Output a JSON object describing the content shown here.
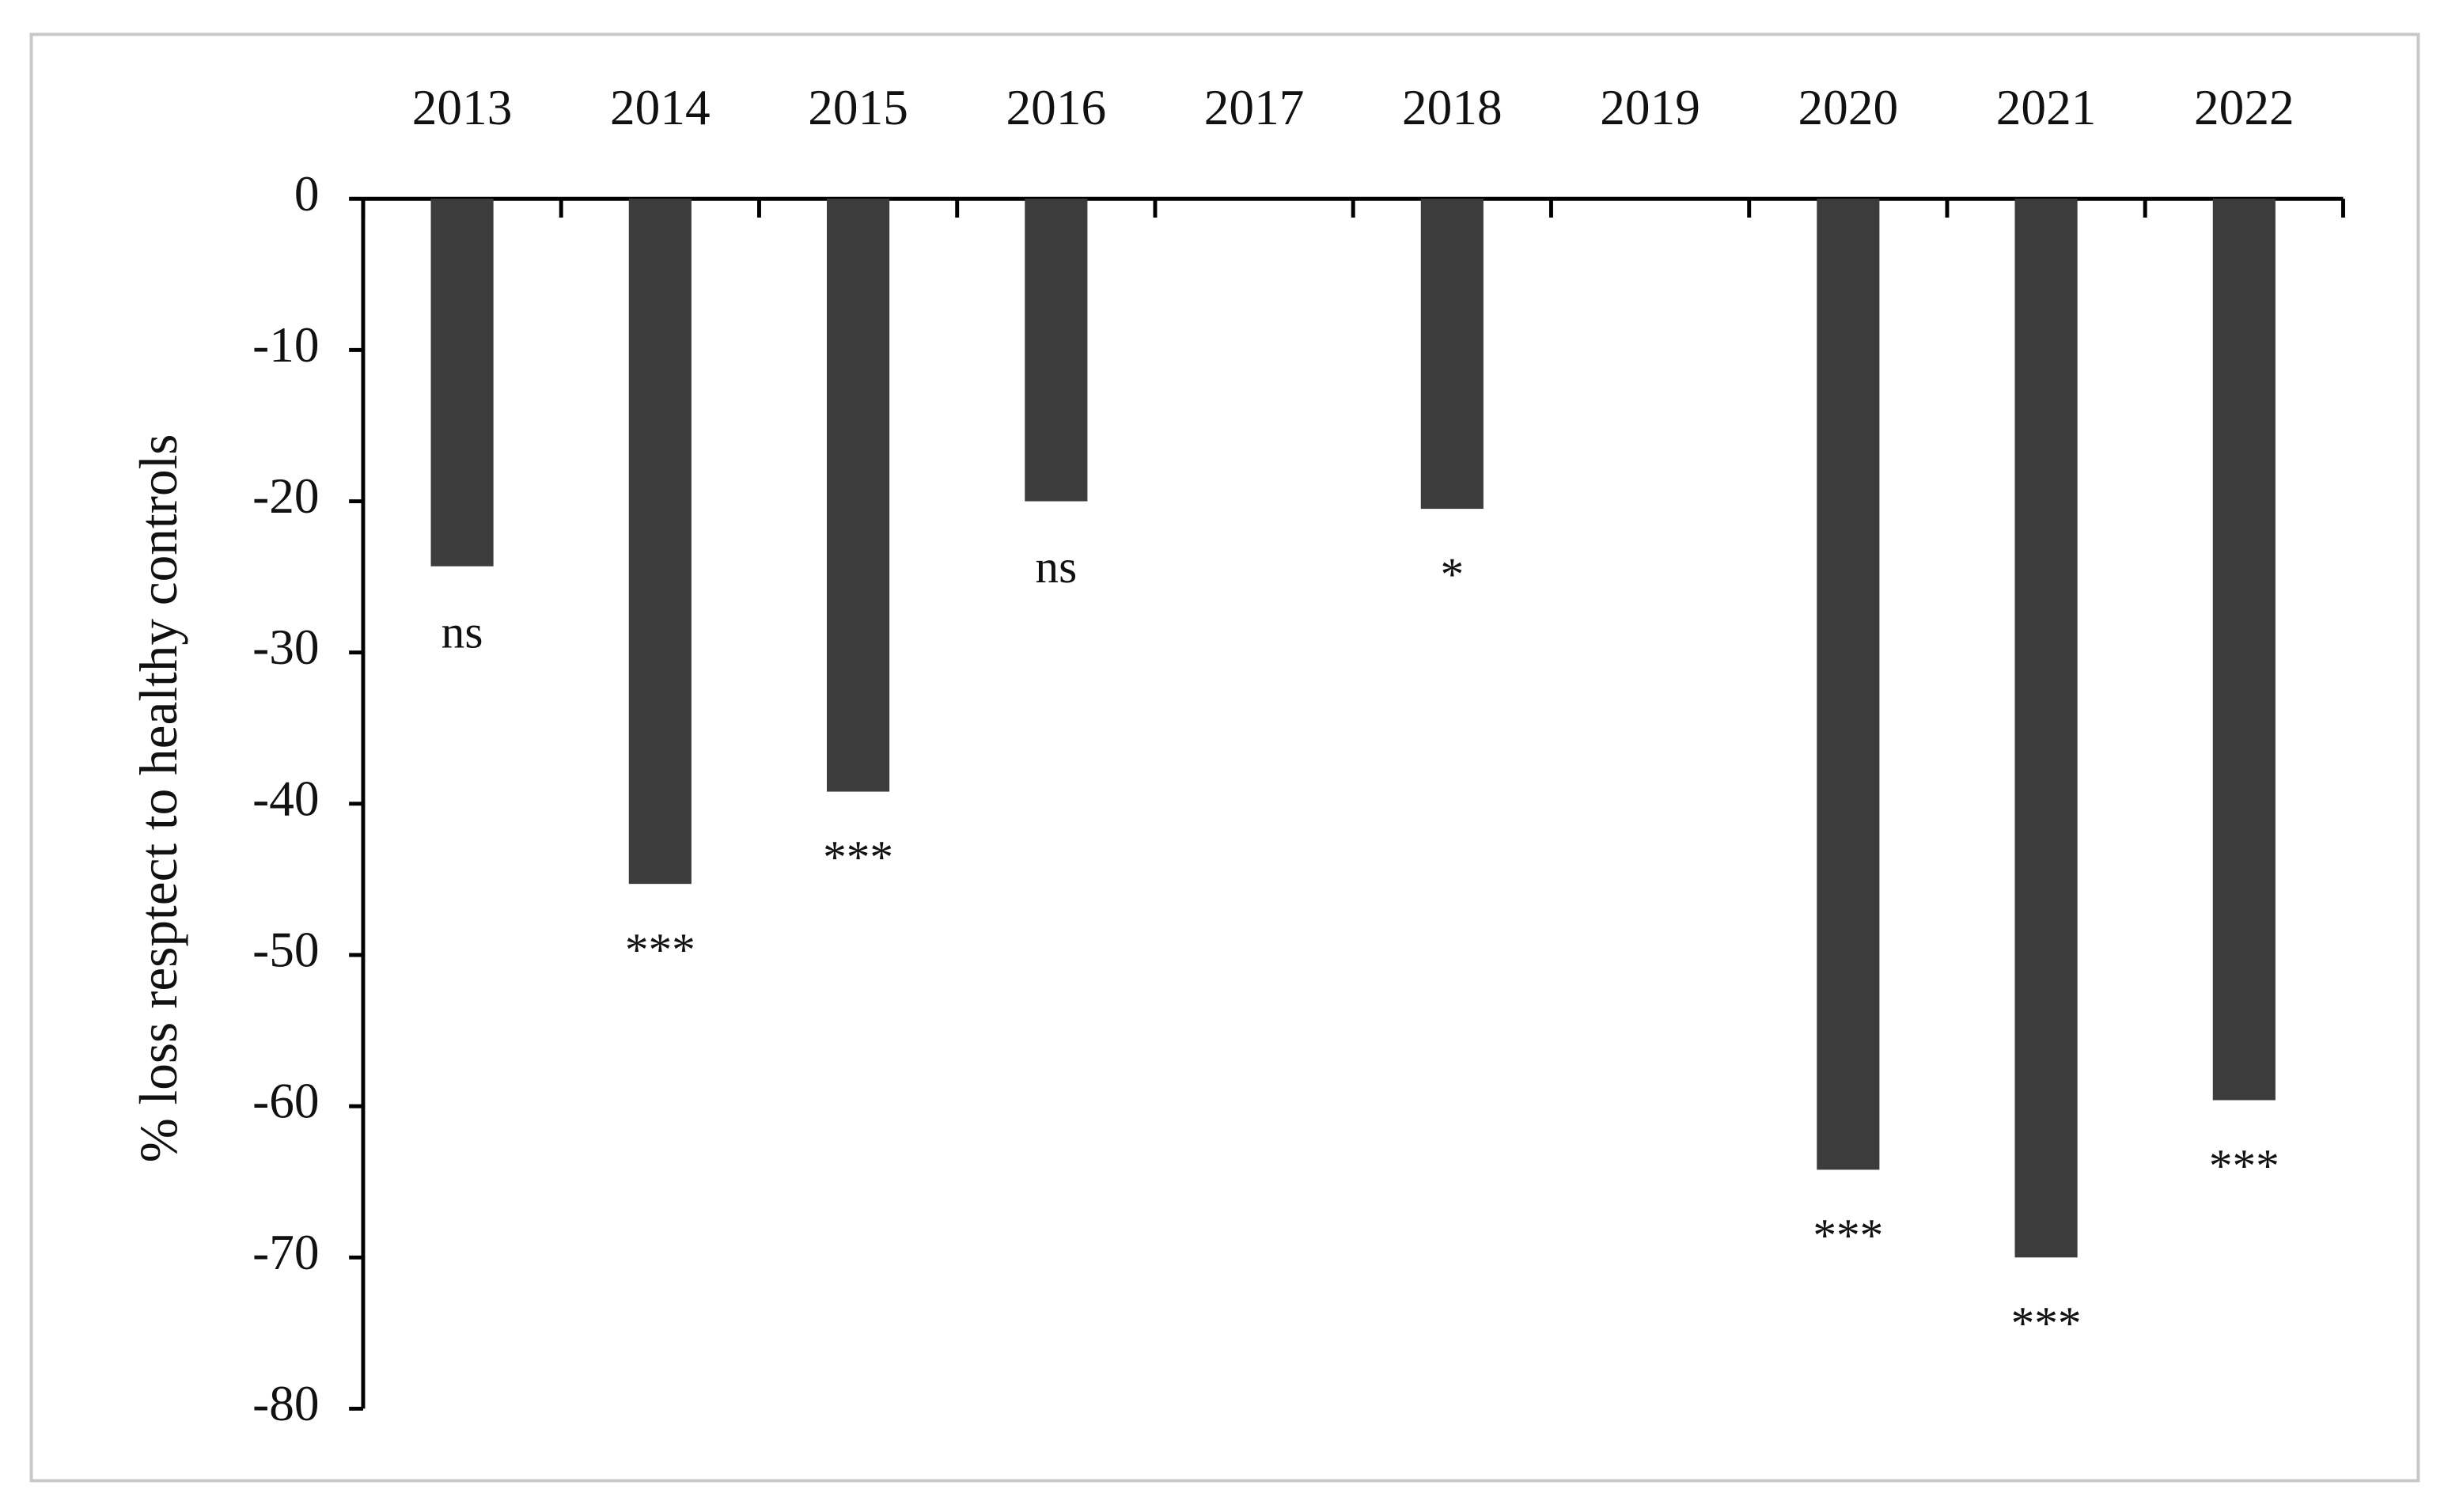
{
  "chart_data": {
    "type": "bar",
    "y_label": "% loss resptect to healthy controls",
    "categories": [
      "2013",
      "2014",
      "2015",
      "2016",
      "2017",
      "2018",
      "2019",
      "2020",
      "2021",
      "2022"
    ],
    "values": [
      -24.3,
      -45.3,
      -39.2,
      -20,
      null,
      -20.5,
      null,
      -64.2,
      -70,
      -59.6
    ],
    "annotations": [
      "ns",
      "***",
      "***",
      "ns",
      null,
      "*",
      null,
      "***",
      "***",
      "***"
    ],
    "color": "#3c3c3c",
    "ylim": [
      -80,
      0
    ],
    "yticks": [
      0,
      -10,
      -20,
      -30,
      -40,
      -50,
      -60,
      -70,
      -80
    ],
    "grid": false
  }
}
